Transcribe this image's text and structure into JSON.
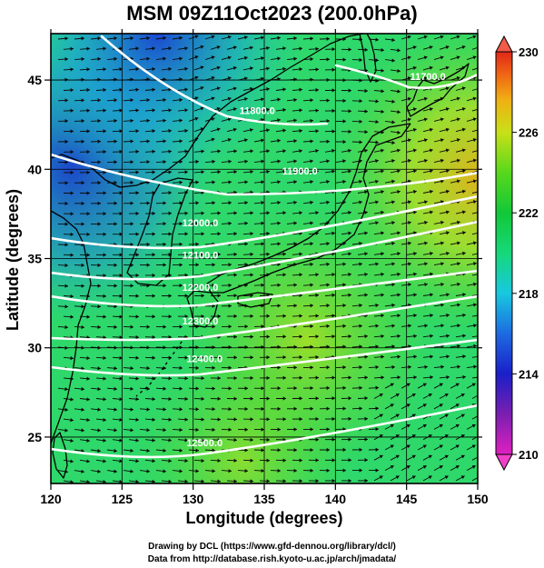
{
  "title": "MSM 09Z11Oct2023 (200.0hPa)",
  "xaxis": {
    "label": "Longitude (degrees)",
    "range": [
      120,
      150
    ],
    "ticks": [
      120,
      125,
      130,
      135,
      140,
      145,
      150
    ],
    "tick_labels": [
      "120",
      "125",
      "130",
      "135",
      "140",
      "145",
      "150"
    ]
  },
  "yaxis": {
    "label": "Latitude  (degrees)",
    "range": [
      22.4,
      47.6
    ],
    "ticks": [
      25,
      30,
      35,
      40,
      45
    ],
    "tick_labels": [
      "25",
      "30",
      "35",
      "40",
      "45"
    ]
  },
  "colorbar": {
    "range": [
      210,
      230
    ],
    "ticks": [
      210,
      214,
      218,
      222,
      226,
      230
    ],
    "tick_labels": [
      "210",
      "214",
      "218",
      "222",
      "226",
      "230"
    ],
    "colors": [
      "#e020c0",
      "#7a1fb0",
      "#1a1fc8",
      "#1d6be0",
      "#18c8e0",
      "#16d87a",
      "#12c838",
      "#58d81c",
      "#c8e018",
      "#f0b014",
      "#f06a14",
      "#e02818"
    ]
  },
  "contours": [
    {
      "label": "11700.0",
      "lon": 146.5,
      "lat": 45.0
    },
    {
      "label": "11800.0",
      "lon": 134.5,
      "lat": 43.1
    },
    {
      "label": "11900.0",
      "lon": 137.5,
      "lat": 39.7
    },
    {
      "label": "12000.0",
      "lon": 130.5,
      "lat": 36.8
    },
    {
      "label": "12100.0",
      "lon": 130.5,
      "lat": 35.0
    },
    {
      "label": "12200.0",
      "lon": 130.5,
      "lat": 33.2
    },
    {
      "label": "12300.0",
      "lon": 130.5,
      "lat": 31.3
    },
    {
      "label": "12400.0",
      "lon": 130.8,
      "lat": 29.2
    },
    {
      "label": "12500.0",
      "lon": 130.8,
      "lat": 24.5
    }
  ],
  "credits": {
    "line1": "Drawing by DCL (https://www.gfd-dennou.org/library/dcl/)",
    "line2": "Data from http://database.rish.kyoto-u.ac.jp/arch/jmadata/"
  }
}
